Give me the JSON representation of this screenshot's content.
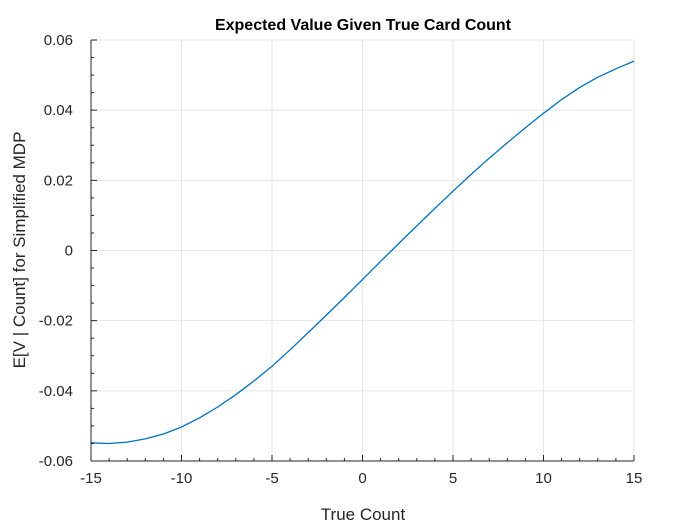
{
  "colors": {
    "line": "#0072BD",
    "grid": "#e6e6e6",
    "axis": "#262626",
    "background": "#ffffff"
  },
  "chart_data": {
    "type": "line",
    "title": "Expected Value Given True Card Count",
    "xlabel": "True Count",
    "ylabel": "E[V | Count] for Simplified MDP",
    "xlim": [
      -15,
      15
    ],
    "ylim": [
      -0.06,
      0.06
    ],
    "grid": true,
    "x_ticks": [
      -15,
      -10,
      -5,
      0,
      5,
      10,
      15
    ],
    "x_tick_labels": [
      "-15",
      "-10",
      "-5",
      "0",
      "5",
      "10",
      "15"
    ],
    "y_ticks": [
      -0.06,
      -0.04,
      -0.02,
      0,
      0.02,
      0.04,
      0.06
    ],
    "y_tick_labels": [
      "-0.06",
      "-0.04",
      "-0.02",
      "0",
      "0.02",
      "0.04",
      "0.06"
    ],
    "series": [
      {
        "x": [
          -15,
          -14,
          -13,
          -12,
          -11,
          -10,
          -9,
          -8,
          -7,
          -6,
          -5,
          -4,
          -3,
          -2,
          -1,
          0,
          1,
          2,
          3,
          4,
          5,
          6,
          7,
          8,
          9,
          10,
          11,
          12,
          13,
          14,
          15
        ],
        "y": [
          -0.0548,
          -0.055,
          -0.0546,
          -0.0537,
          -0.0523,
          -0.0503,
          -0.0477,
          -0.0446,
          -0.0411,
          -0.0372,
          -0.033,
          -0.0283,
          -0.0234,
          -0.0184,
          -0.0134,
          -0.0083,
          -0.0031,
          0.002,
          0.007,
          0.012,
          0.0169,
          0.0217,
          0.0263,
          0.0307,
          0.035,
          0.0391,
          0.043,
          0.0465,
          0.0494,
          0.0518,
          0.054
        ]
      }
    ]
  }
}
